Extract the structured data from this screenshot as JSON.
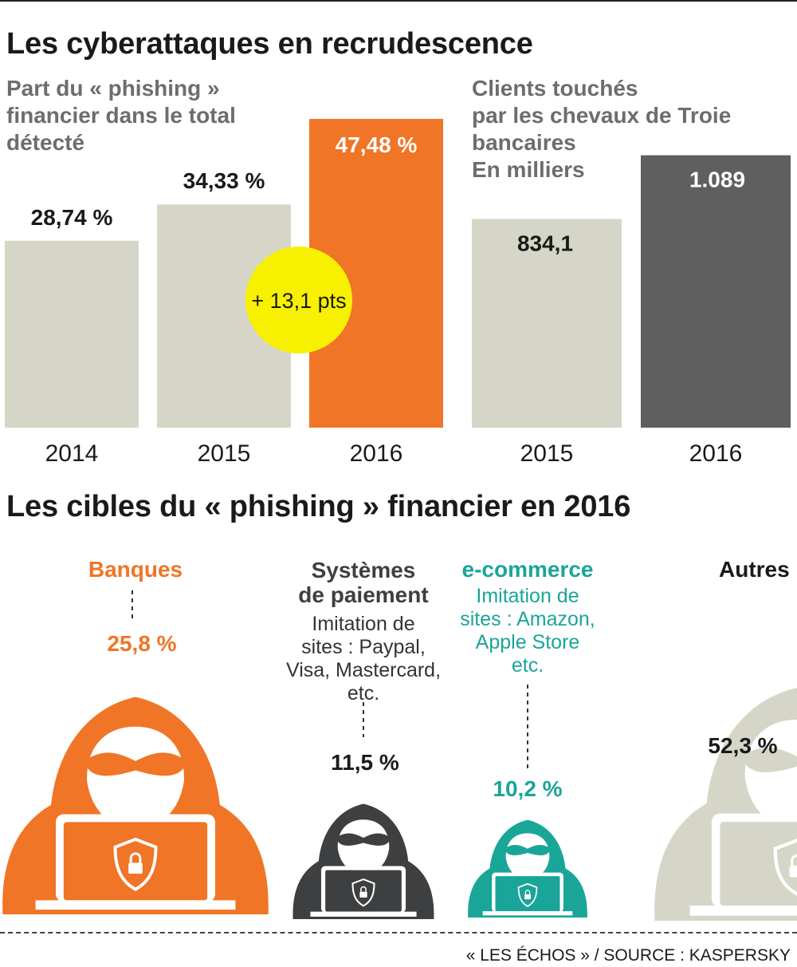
{
  "title1": "Les cyberattaques en recrudescence",
  "left_subtitle": [
    "Part du « phishing »",
    "financier dans le total",
    "détecté"
  ],
  "right_subtitle": [
    "Clients touchés",
    "par les chevaux de Troie",
    "bancaires",
    "En milliers"
  ],
  "badge": "+ 13,1 pts",
  "colors": {
    "beige": "#d6d6c8",
    "orange": "#f07526",
    "dark": "#5f5f5f",
    "yellow": "#f7f000",
    "teal": "#1aa599",
    "charcoal": "#3d3f41"
  },
  "chart_data": [
    {
      "type": "bar",
      "categories": [
        "2014",
        "2015",
        "2016"
      ],
      "values": [
        28.74,
        34.33,
        47.48
      ],
      "labels": [
        "28,74 %",
        "34,33 %",
        "47,48 %"
      ],
      "colors": [
        "#d6d6c8",
        "#d6d6c8",
        "#f07526"
      ],
      "title": "Part du « phishing » financier dans le total détecté",
      "annotation": "+ 13,1 pts"
    },
    {
      "type": "bar",
      "categories": [
        "2015",
        "2016"
      ],
      "values": [
        834.1,
        1089
      ],
      "labels": [
        "834,1",
        "1.089"
      ],
      "colors": [
        "#d6d6c8",
        "#5f5f5f"
      ],
      "title": "Clients touchés par les chevaux de Troie bancaires",
      "ylabel": "En milliers"
    },
    {
      "type": "pictogram",
      "title": "Les cibles du « phishing » financier en 2016",
      "categories": [
        "Banques",
        "Systèmes de paiement",
        "e-commerce",
        "Autres"
      ],
      "values": [
        25.8,
        11.5,
        10.2,
        52.3
      ],
      "labels": [
        "25,8 %",
        "11,5 %",
        "10,2 %",
        "52,3 %"
      ]
    }
  ],
  "title2": "Les cibles du « phishing » financier en 2016",
  "targets": [
    {
      "name": "Banques",
      "color": "#f07526",
      "value": "25,8 %",
      "desc": []
    },
    {
      "name": "Systèmes de paiement",
      "name_lines": [
        "Systèmes",
        "de paiement"
      ],
      "color": "#3d3f41",
      "value": "11,5 %",
      "desc": [
        "Imitation de",
        "sites : Paypal,",
        "Visa, Mastercard,",
        "etc."
      ]
    },
    {
      "name": "e-commerce",
      "color": "#1aa599",
      "value": "10,2 %",
      "desc": [
        "Imitation de",
        "sites : Amazon,",
        "Apple Store",
        "etc."
      ]
    },
    {
      "name": "Autres",
      "color": "#d6d6c8",
      "value": "52,3 %",
      "desc": []
    }
  ],
  "source": "« LES ÉCHOS » / SOURCE : KASPERSKY",
  "icons": {
    "hacker": "hooded-hacker-icon",
    "shield": "lock-shield-icon"
  }
}
